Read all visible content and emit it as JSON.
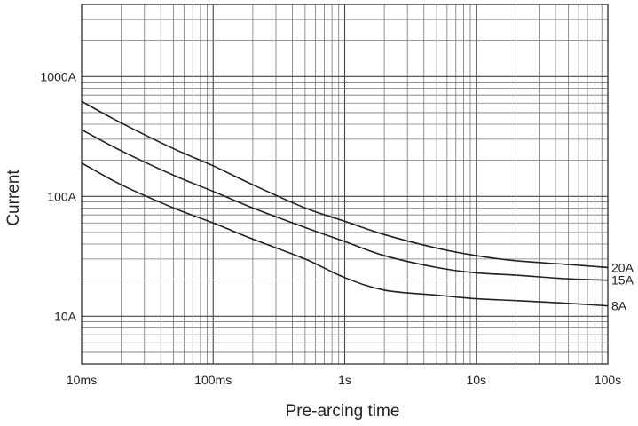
{
  "chart_data": {
    "type": "line",
    "title": "",
    "xlabel": "Pre-arcing time",
    "ylabel": "Current",
    "x_scale": "log",
    "y_scale": "log",
    "xlim": [
      "10ms",
      "100s"
    ],
    "ylim": [
      "4A",
      "4000A"
    ],
    "grid": true,
    "legend": "labels at right end of each curve",
    "x_ticks": [
      "10ms",
      "100ms",
      "1s",
      "10s",
      "100s"
    ],
    "y_ticks": [
      "10A",
      "100A",
      "1000A"
    ],
    "series": [
      {
        "name": "20A",
        "points": [
          [
            "10ms",
            "620A"
          ],
          [
            "20ms",
            "410A"
          ],
          [
            "50ms",
            "250A"
          ],
          [
            "100ms",
            "180A"
          ],
          [
            "200ms",
            "125A"
          ],
          [
            "500ms",
            "80A"
          ],
          [
            "1s",
            "62A"
          ],
          [
            "2s",
            "48A"
          ],
          [
            "5s",
            "37A"
          ],
          [
            "10s",
            "32A"
          ],
          [
            "20s",
            "29A"
          ],
          [
            "50s",
            "27A"
          ],
          [
            "100s",
            "25.5A"
          ]
        ]
      },
      {
        "name": "15A",
        "points": [
          [
            "10ms",
            "360A"
          ],
          [
            "20ms",
            "240A"
          ],
          [
            "50ms",
            "150A"
          ],
          [
            "100ms",
            "110A"
          ],
          [
            "200ms",
            "80A"
          ],
          [
            "500ms",
            "55A"
          ],
          [
            "1s",
            "42A"
          ],
          [
            "2s",
            "32A"
          ],
          [
            "5s",
            "25.5A"
          ],
          [
            "10s",
            "23A"
          ],
          [
            "20s",
            "22A"
          ],
          [
            "50s",
            "20.5A"
          ],
          [
            "100s",
            "20A"
          ]
        ]
      },
      {
        "name": "8A",
        "points": [
          [
            "10ms",
            "190A"
          ],
          [
            "20ms",
            "125A"
          ],
          [
            "50ms",
            "80A"
          ],
          [
            "100ms",
            "60A"
          ],
          [
            "200ms",
            "44A"
          ],
          [
            "500ms",
            "30A"
          ],
          [
            "1s",
            "21A"
          ],
          [
            "2s",
            "16.5A"
          ],
          [
            "5s",
            "15A"
          ],
          [
            "10s",
            "14A"
          ],
          [
            "20s",
            "13.5A"
          ],
          [
            "50s",
            "12.8A"
          ],
          [
            "100s",
            "12.2A"
          ]
        ]
      }
    ]
  }
}
